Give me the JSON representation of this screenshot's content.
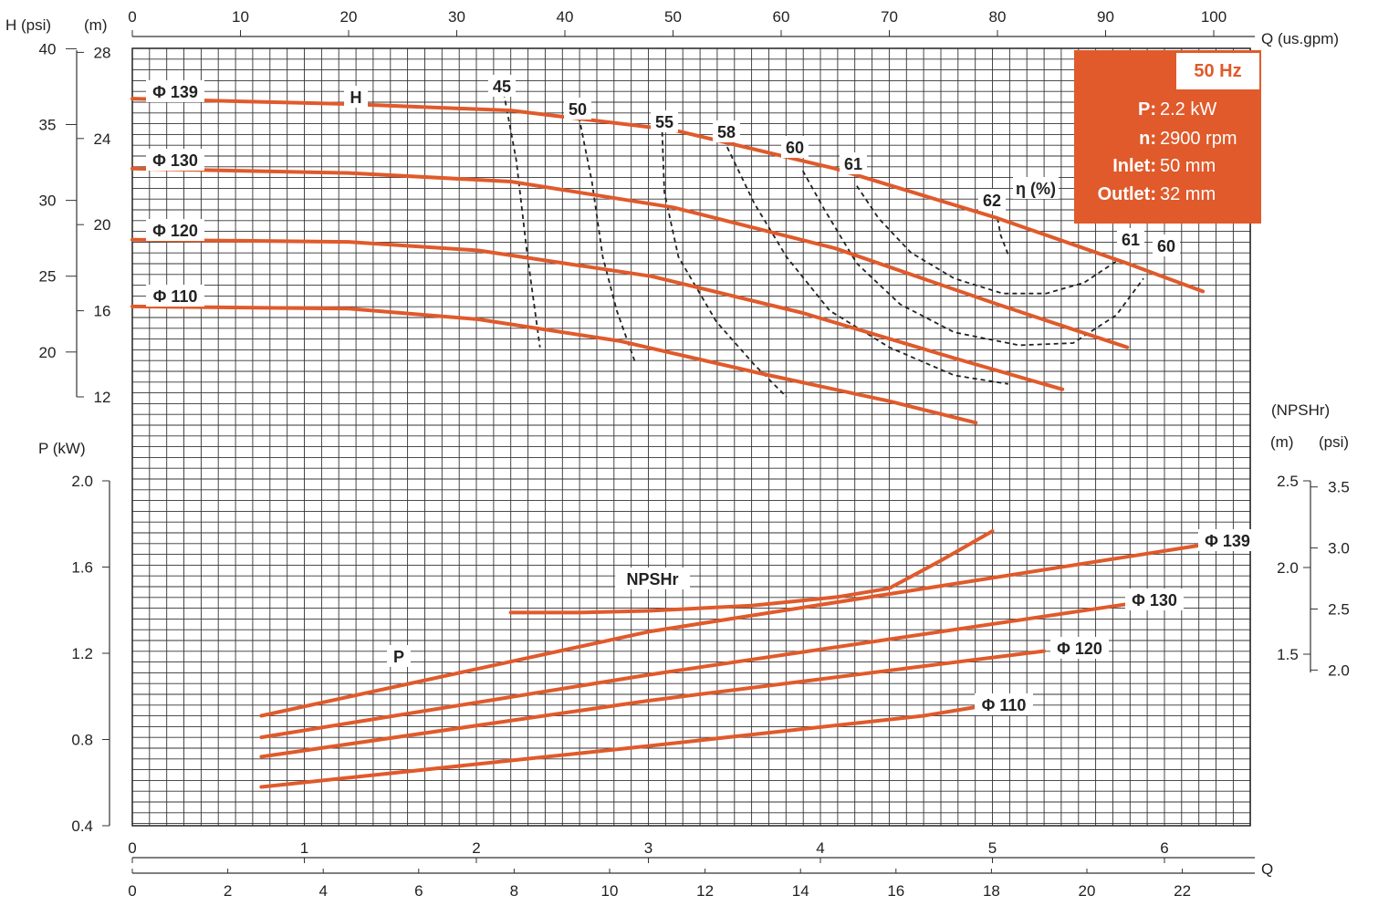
{
  "units": {
    "h_psi": "H (psi)",
    "h_m": "(m)",
    "q_usgpm": "Q  (us.gpm)",
    "p_kw": "P (kW)",
    "npshr": "(NPSHr)",
    "npshr_m": "(m)",
    "npshr_psi": "(psi)",
    "q_bottom": "Q"
  },
  "info": {
    "freq": "50 Hz",
    "rows": [
      {
        "key": "P:",
        "value": "2.2 kW"
      },
      {
        "key": "n:",
        "value": "2900 rpm"
      },
      {
        "key": "Inlet:",
        "value": "50 mm"
      },
      {
        "key": "Outlet:",
        "value": "32 mm"
      }
    ]
  },
  "chart_data": {
    "type": "line",
    "axes": {
      "q_usgpm": {
        "range": [
          0,
          100
        ],
        "ticks": [
          "0",
          "10",
          "20",
          "30",
          "40",
          "50",
          "60",
          "70",
          "80",
          "90",
          "100"
        ]
      },
      "q_m3h": {
        "range": [
          0,
          6.5
        ],
        "ticks": [
          "0",
          "1",
          "2",
          "3",
          "4",
          "5",
          "6"
        ]
      },
      "q_lmin": {
        "range": [
          0,
          22
        ],
        "ticks": [
          "0",
          "2",
          "4",
          "6",
          "8",
          "10",
          "12",
          "14",
          "16",
          "18",
          "20",
          "22"
        ]
      },
      "head_m": {
        "range": [
          12,
          28
        ],
        "ticks": [
          "12",
          "16",
          "20",
          "24",
          "28"
        ]
      },
      "head_psi": {
        "ticks": [
          "20",
          "25",
          "30",
          "35",
          "40"
        ]
      },
      "power_kw": {
        "range": [
          0.4,
          2.0
        ],
        "ticks": [
          "0.4",
          "0.8",
          "1.2",
          "1.6",
          "2.0"
        ]
      },
      "npshr_m": {
        "range": [
          1.5,
          2.5
        ],
        "ticks": [
          "1.5",
          "2.0",
          "2.5"
        ]
      },
      "npshr_psi": {
        "ticks": [
          "2.0",
          "2.5",
          "3.0",
          "3.5"
        ]
      }
    },
    "grid": true,
    "head_curves": [
      {
        "name": "Φ 139",
        "x_usgpm": [
          0,
          20,
          35,
          50,
          65,
          80,
          92,
          99
        ],
        "y_m": [
          25.85,
          25.6,
          25.3,
          24.4,
          22.6,
          20.3,
          18.2,
          16.9
        ]
      },
      {
        "name": "Φ 130",
        "x_usgpm": [
          0,
          20,
          35,
          50,
          65,
          80,
          92
        ],
        "y_m": [
          22.6,
          22.4,
          22.0,
          20.8,
          18.9,
          16.3,
          14.3
        ]
      },
      {
        "name": "Φ 120",
        "x_usgpm": [
          0,
          20,
          32,
          48,
          62,
          76,
          86
        ],
        "y_m": [
          19.3,
          19.2,
          18.8,
          17.6,
          15.9,
          13.8,
          12.35
        ]
      },
      {
        "name": "Φ 110",
        "x_usgpm": [
          0,
          20,
          32,
          45,
          58,
          70,
          78
        ],
        "y_m": [
          16.2,
          16.1,
          15.6,
          14.6,
          13.1,
          11.8,
          10.8
        ]
      }
    ],
    "power_curves": [
      {
        "name": "Φ 139",
        "x_m3h": [
          0.75,
          3.0,
          6.2
        ],
        "y_kw": [
          0.91,
          1.3,
          1.7
        ]
      },
      {
        "name": "Φ 130",
        "x_m3h": [
          0.75,
          3.0,
          5.8
        ],
        "y_kw": [
          0.81,
          1.1,
          1.43
        ]
      },
      {
        "name": "Φ 120",
        "x_m3h": [
          0.75,
          3.0,
          5.3
        ],
        "y_kw": [
          0.72,
          0.98,
          1.21
        ]
      },
      {
        "name": "Φ 110",
        "x_m3h": [
          0.75,
          3.0,
          4.6,
          4.9
        ],
        "y_kw": [
          0.58,
          0.77,
          0.91,
          0.95
        ]
      }
    ],
    "npshr_curve": {
      "name": "NPSHr",
      "x_m3h": [
        2.2,
        2.6,
        3.0,
        3.6,
        4.1,
        4.4,
        4.7,
        5.0
      ],
      "y_m": [
        1.74,
        1.74,
        1.75,
        1.78,
        1.83,
        1.88,
        2.04,
        2.21
      ]
    },
    "efficiency_curves": [
      {
        "name": "45",
        "x_usgpm": [
          34.2,
          35.5,
          36.5,
          37.7
        ],
        "y_m": [
          26.5,
          23.0,
          18.7,
          14.3
        ]
      },
      {
        "name": "50",
        "x_usgpm": [
          41.3,
          42.5,
          43.5,
          44.8,
          46.5
        ],
        "y_m": [
          25.0,
          22.0,
          18.5,
          16.0,
          13.6
        ]
      },
      {
        "name": "55",
        "x_usgpm": [
          49.0,
          49.2,
          50.5,
          54.0,
          57.5,
          60.5
        ],
        "y_m": [
          24.3,
          21.5,
          18.5,
          15.5,
          13.5,
          12.0
        ]
      },
      {
        "name": "58",
        "x_usgpm": [
          55.0,
          57.5,
          60.5,
          64.5,
          70.0,
          76.0,
          81.0
        ],
        "y_m": [
          23.6,
          21.0,
          18.5,
          16.0,
          14.3,
          13.0,
          12.6
        ]
      },
      {
        "name": "60",
        "x_usgpm": [
          62.0,
          64.0,
          67.0,
          71.0,
          76.0,
          82.0,
          87.0,
          91.0,
          93.5
        ],
        "y_m": [
          22.5,
          20.7,
          18.2,
          16.3,
          15.0,
          14.4,
          14.5,
          15.8,
          17.5
        ]
      },
      {
        "name": "61",
        "x_usgpm": [
          67.0,
          69.0,
          72.0,
          76.0,
          80.5,
          84.5,
          88.0,
          91.0
        ],
        "y_m": [
          21.8,
          20.3,
          18.7,
          17.5,
          16.8,
          16.8,
          17.3,
          18.3
        ]
      },
      {
        "name": "62",
        "x_usgpm": [
          80.0,
          80.3,
          81.0
        ],
        "y_m": [
          20.3,
          19.5,
          18.6
        ]
      }
    ],
    "efficiency_axis_label": "η (%)",
    "efficiency_labels": [
      "45",
      "50",
      "55",
      "58",
      "60",
      "61",
      "62",
      "61",
      "60"
    ],
    "annotations": [
      "H",
      "P",
      "NPSHr"
    ]
  }
}
